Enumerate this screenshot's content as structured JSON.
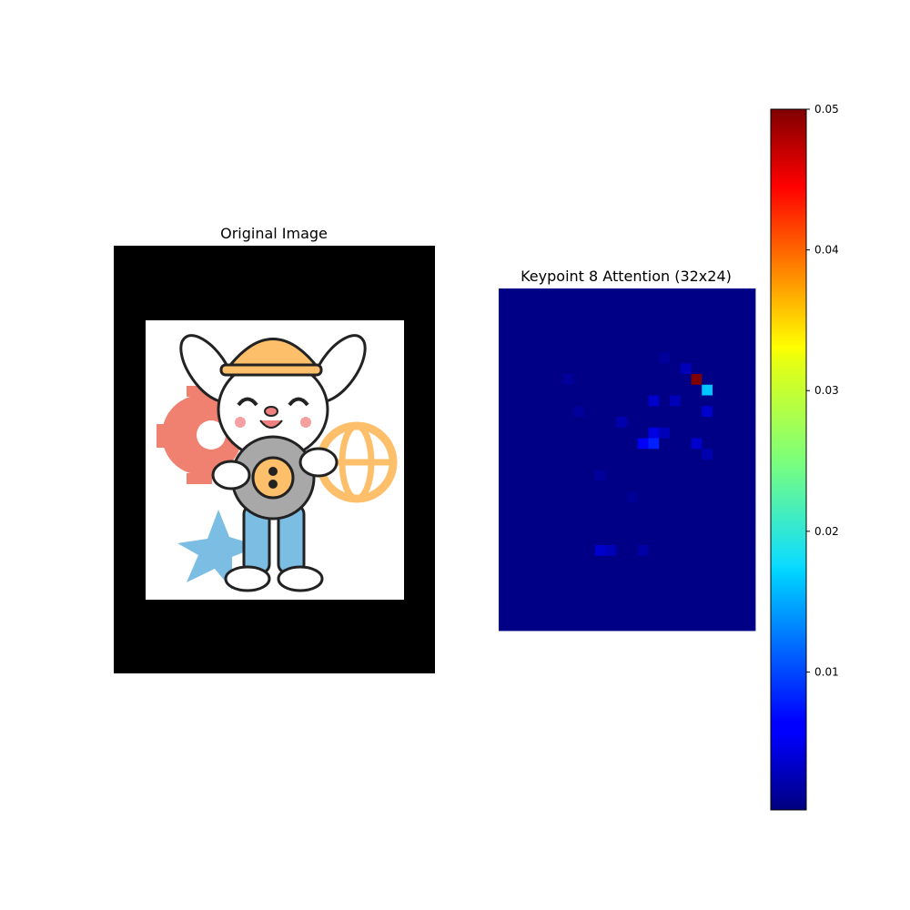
{
  "panels": {
    "left_title": "Original Image",
    "right_title": "Keypoint 8 Attention (32x24)"
  },
  "chart_data": {
    "type": "heatmap",
    "title": "Keypoint 8 Attention (32x24)",
    "rows": 32,
    "cols": 24,
    "colormap": "jet",
    "vmin": 0.0002,
    "vmax": 0.05,
    "colorbar_ticks": [
      0.01,
      0.02,
      0.03,
      0.04,
      0.05
    ],
    "colorbar_tick_labels": [
      "0.01",
      "0.02",
      "0.03",
      "0.04",
      "0.05"
    ],
    "background_value": 0.0005,
    "hotspots": [
      {
        "row": 8,
        "col": 18,
        "value": 0.05
      },
      {
        "row": 9,
        "col": 19,
        "value": 0.016
      },
      {
        "row": 14,
        "col": 14,
        "value": 0.008
      },
      {
        "row": 14,
        "col": 13,
        "value": 0.006
      },
      {
        "row": 13,
        "col": 14,
        "value": 0.005
      },
      {
        "row": 10,
        "col": 14,
        "value": 0.004
      },
      {
        "row": 11,
        "col": 19,
        "value": 0.004
      },
      {
        "row": 14,
        "col": 18,
        "value": 0.004
      },
      {
        "row": 13,
        "col": 15,
        "value": 0.003
      },
      {
        "row": 10,
        "col": 16,
        "value": 0.003
      },
      {
        "row": 24,
        "col": 9,
        "value": 0.004
      },
      {
        "row": 24,
        "col": 10,
        "value": 0.003
      },
      {
        "row": 7,
        "col": 17,
        "value": 0.003
      },
      {
        "row": 12,
        "col": 11,
        "value": 0.0025
      },
      {
        "row": 15,
        "col": 19,
        "value": 0.0025
      },
      {
        "row": 24,
        "col": 13,
        "value": 0.002
      },
      {
        "row": 8,
        "col": 6,
        "value": 0.0015
      },
      {
        "row": 11,
        "col": 7,
        "value": 0.0015
      },
      {
        "row": 17,
        "col": 9,
        "value": 0.0015
      },
      {
        "row": 19,
        "col": 12,
        "value": 0.0012
      },
      {
        "row": 6,
        "col": 15,
        "value": 0.0015
      }
    ]
  }
}
